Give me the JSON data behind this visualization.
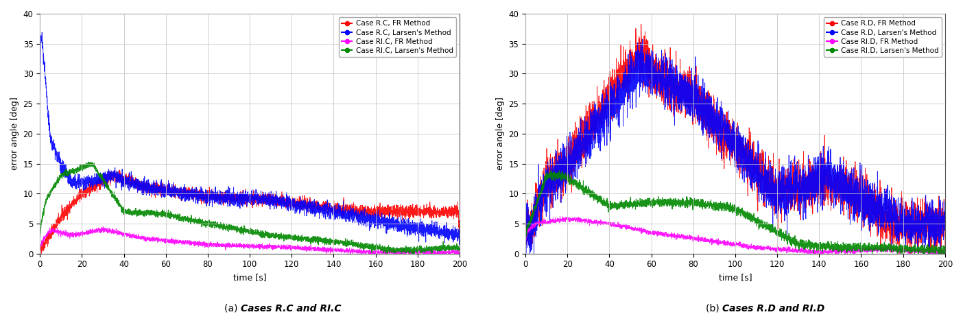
{
  "title_a": "(a) Cases R.C and RI.C",
  "title_b": "(b) Cases R.D and RI.D",
  "xlabel": "time [s]",
  "ylabel": "error angle [deg]",
  "xlim": [
    0,
    200
  ],
  "ylim": [
    0,
    40
  ],
  "yticks": [
    0,
    5,
    10,
    15,
    20,
    25,
    30,
    35,
    40
  ],
  "xticks": [
    0,
    20,
    40,
    60,
    80,
    100,
    120,
    140,
    160,
    180,
    200
  ],
  "legend_a": [
    {
      "label": "Case R.C, FR Method",
      "color": "#ff0000"
    },
    {
      "label": "Case R.C, Larsen's Method",
      "color": "#0000ff"
    },
    {
      "label": "Case RI.C, FR Method",
      "color": "#ff00ff"
    },
    {
      "label": "Case RI.C, Larsen's Method",
      "color": "#008800"
    }
  ],
  "legend_b": [
    {
      "label": "Case R.D, FR Method",
      "color": "#ff0000"
    },
    {
      "label": "Case R.D, Larsen's Method",
      "color": "#0000ff"
    },
    {
      "label": "Case RI.D, FR Method",
      "color": "#ff00ff"
    },
    {
      "label": "Case RI.D, Larsen's Method",
      "color": "#008800"
    }
  ],
  "background_color": "#ffffff",
  "grid_color": "#c8c8c8"
}
